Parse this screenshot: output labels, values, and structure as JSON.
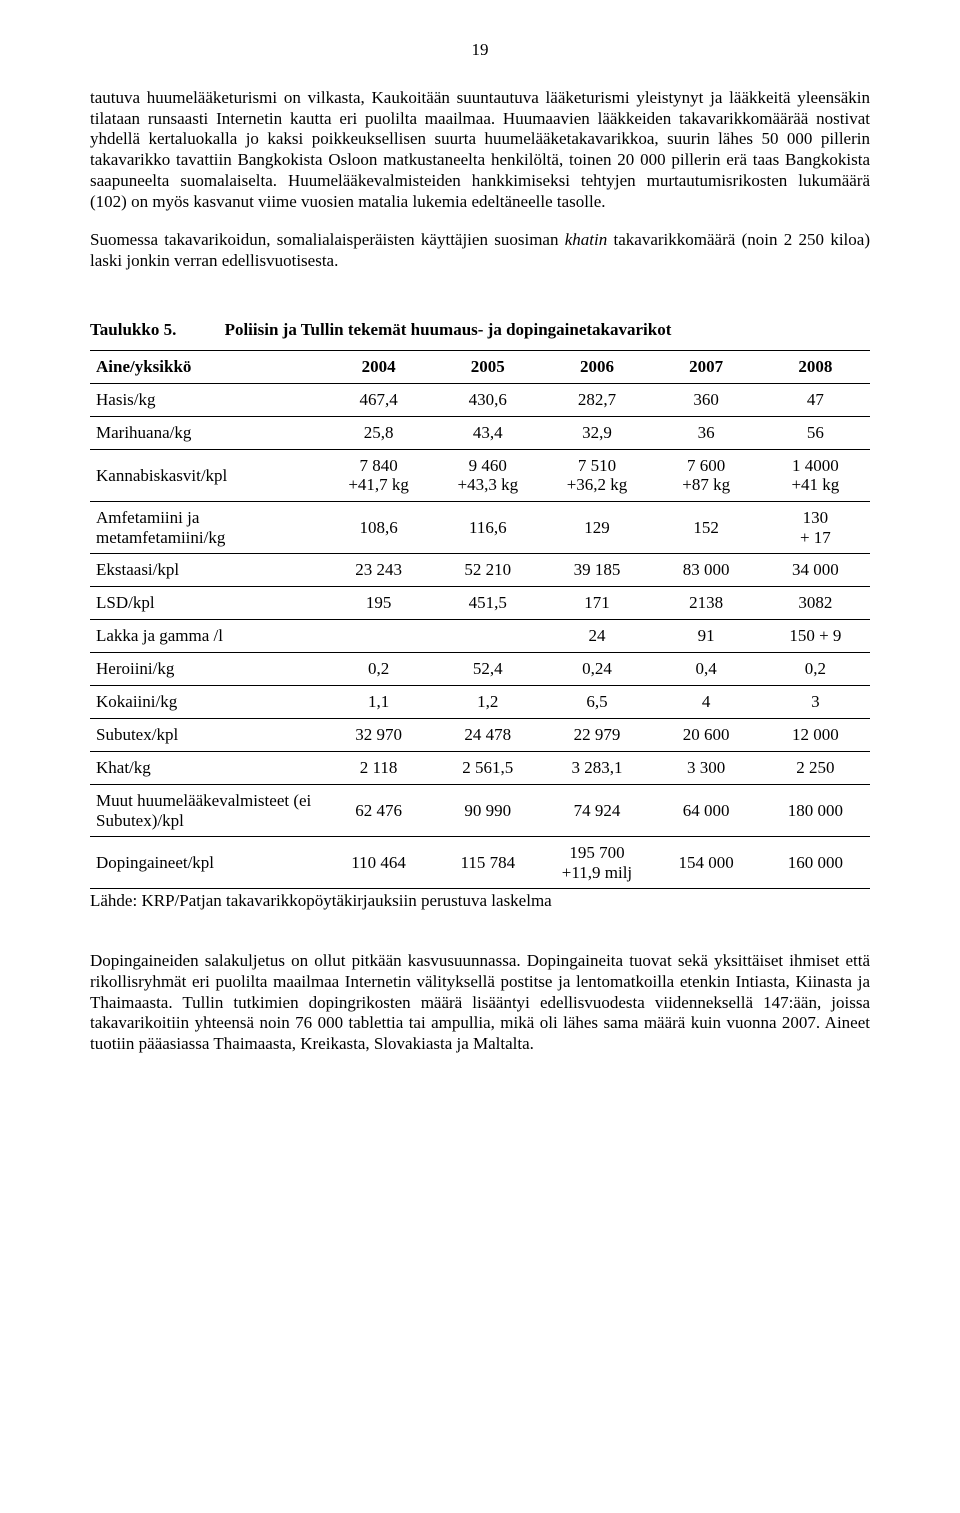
{
  "page_number": "19",
  "paragraphs": {
    "p1": "tautuva huumelääketurismi on vilkasta, Kaukoitään suuntautuva lääketurismi yleistynyt ja lääkkeitä yleensäkin tilataan runsaasti Internetin kautta eri puolilta maailmaa. Huumaavien lääkkeiden takavarikkomäärää nostivat yhdellä kertaluokalla jo kaksi poikkeuksellisen suurta huumelääketakavarikkoa, suurin lähes 50 000 pillerin takavarikko tavattiin Bangkokista Osloon matkustaneelta henkilöltä, toinen 20 000 pillerin erä taas Bangkokista saapuneelta suomalaiselta. Huumelääkevalmisteiden hankkimiseksi tehtyjen murtautumisrikosten lukumäärä (102) on myös kasvanut viime vuosien matalia lukemia edeltäneelle tasolle.",
    "p2_a": "Suomessa takavarikoidun, somalialaisperäisten käyttäjien suosiman ",
    "p2_italic": "khatin",
    "p2_b": " takavarikkomäärä (noin 2 250 kiloa) laski jonkin verran edellisvuotisesta.",
    "p3": "Dopingaineiden salakuljetus on ollut pitkään kasvusuunnassa. Dopingaineita tuovat sekä yksittäiset ihmiset että rikollisryhmät eri puolilta maailmaa Internetin välityksellä postitse ja lentomatkoilla etenkin Intiasta, Kiinasta ja Thaimaasta. Tullin tutkimien dopingrikosten määrä lisääntyi edellisvuodesta viidenneksellä 147:ään, joissa takavarikoitiin yhteensä noin 76 000 tablettia tai ampullia, mikä oli lähes sama määrä kuin vuonna 2007. Aineet tuotiin pääasiassa Thaimaasta, Kreikasta, Slovakiasta ja Maltalta."
  },
  "table": {
    "number": "Taulukko 5.",
    "title": "Poliisin ja Tullin tekemät huumaus- ja dopingainetakavarikot",
    "headers": [
      "Aine/yksikkö",
      "2004",
      "2005",
      "2006",
      "2007",
      "2008"
    ],
    "rows": [
      {
        "label": "Hasis/kg",
        "cells": [
          "467,4",
          "430,6",
          "282,7",
          "360",
          "47"
        ]
      },
      {
        "label": "Marihuana/kg",
        "cells": [
          "25,8",
          "43,4",
          "32,9",
          "36",
          "56"
        ]
      },
      {
        "label": "Kannabiskasvit/kpl",
        "cells": [
          "7 840\n+41,7 kg",
          "9 460\n+43,3 kg",
          "7 510\n+36,2 kg",
          "7 600\n+87 kg",
          "1 4000\n+41 kg"
        ]
      },
      {
        "label": "Amfetamiini ja metamfetamiini/kg",
        "cells": [
          "108,6",
          "116,6",
          "129",
          "152",
          "130\n+ 17"
        ]
      },
      {
        "label": "Ekstaasi/kpl",
        "cells": [
          "23 243",
          "52 210",
          "39 185",
          "83 000",
          "34 000"
        ]
      },
      {
        "label": "LSD/kpl",
        "cells": [
          "195",
          "451,5",
          "171",
          "2138",
          "3082"
        ]
      },
      {
        "label": "Lakka ja gamma /l",
        "cells": [
          "",
          "",
          "24",
          "91",
          "150 + 9"
        ]
      },
      {
        "label": "Heroiini/kg",
        "cells": [
          "0,2",
          "52,4",
          "0,24",
          "0,4",
          "0,2"
        ]
      },
      {
        "label": "Kokaiini/kg",
        "cells": [
          "1,1",
          "1,2",
          "6,5",
          "4",
          "3"
        ]
      },
      {
        "label": "Subutex/kpl",
        "cells": [
          "32 970",
          "24 478",
          "22 979",
          "20 600",
          "12 000"
        ]
      },
      {
        "label": "Khat/kg",
        "cells": [
          "2 118",
          "2 561,5",
          "3 283,1",
          "3 300",
          "2 250"
        ]
      },
      {
        "label": "Muut huumelääkevalmisteet (ei Subutex)/kpl",
        "cells": [
          "62 476",
          "90 990",
          "74 924",
          "64 000",
          "180 000"
        ]
      },
      {
        "label": "Dopingaineet/kpl",
        "cells": [
          "110 464",
          "115 784",
          "195 700\n+11,9 milj",
          "154 000",
          "160 000"
        ]
      }
    ],
    "source": "Lähde: KRP/Patjan takavarikkopöytäkirjauksiin perustuva laskelma"
  }
}
